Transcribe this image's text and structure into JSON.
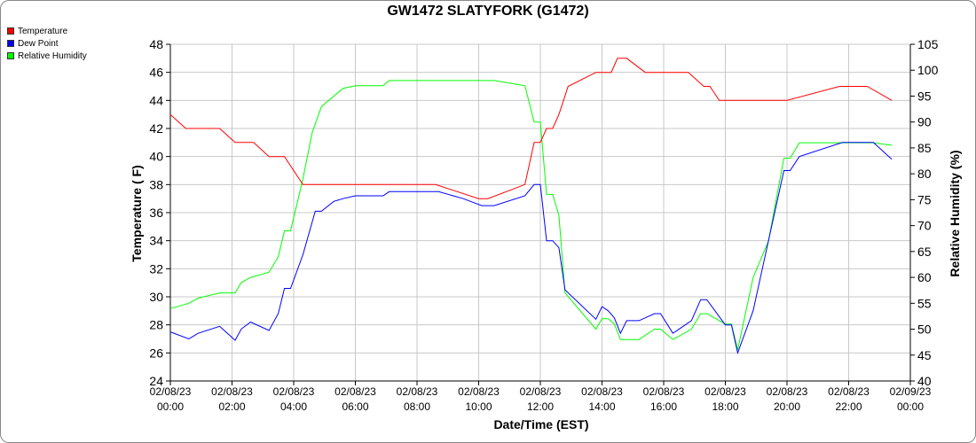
{
  "colors": {
    "temperature": "#ff0000",
    "dew_point": "#0000ff",
    "humidity": "#00ff00",
    "grid": "#c8c8c8"
  },
  "chart_data": {
    "type": "line",
    "title": "GW1472 SLATYFORK (G1472)",
    "xlabel": "Date/Time (EST)",
    "ylabel_left": "Temperature ( F)",
    "ylabel_right": "Relative Humidity (%)",
    "ylim_left": [
      24,
      48
    ],
    "ylim_right": [
      40,
      105
    ],
    "xlim_hours": [
      0,
      24
    ],
    "x_ticks": [
      {
        "h": 0,
        "date": "02/08/23",
        "time": "00:00"
      },
      {
        "h": 2,
        "date": "02/08/23",
        "time": "02:00"
      },
      {
        "h": 4,
        "date": "02/08/23",
        "time": "04:00"
      },
      {
        "h": 6,
        "date": "02/08/23",
        "time": "06:00"
      },
      {
        "h": 8,
        "date": "02/08/23",
        "time": "08:00"
      },
      {
        "h": 10,
        "date": "02/08/23",
        "time": "10:00"
      },
      {
        "h": 12,
        "date": "02/08/23",
        "time": "12:00"
      },
      {
        "h": 14,
        "date": "02/08/23",
        "time": "14:00"
      },
      {
        "h": 16,
        "date": "02/08/23",
        "time": "16:00"
      },
      {
        "h": 18,
        "date": "02/08/23",
        "time": "18:00"
      },
      {
        "h": 20,
        "date": "02/08/23",
        "time": "20:00"
      },
      {
        "h": 22,
        "date": "02/08/23",
        "time": "22:00"
      },
      {
        "h": 24,
        "date": "02/09/23",
        "time": "00:00"
      }
    ],
    "y_ticks_left": [
      24,
      26,
      28,
      30,
      32,
      34,
      36,
      38,
      40,
      42,
      44,
      46,
      48
    ],
    "y_ticks_right": [
      40,
      45,
      50,
      55,
      60,
      65,
      70,
      75,
      80,
      85,
      90,
      95,
      100,
      105
    ],
    "grid": true,
    "legend_position": "top-left",
    "series": [
      {
        "name": "Temperature",
        "axis": "left",
        "color_key": "temperature",
        "points": [
          [
            0,
            43
          ],
          [
            0.5,
            42
          ],
          [
            1.6,
            42
          ],
          [
            2.1,
            41
          ],
          [
            2.7,
            41
          ],
          [
            3.2,
            40
          ],
          [
            3.7,
            40
          ],
          [
            4.3,
            38
          ],
          [
            8.6,
            38
          ],
          [
            10,
            37
          ],
          [
            10.3,
            37
          ],
          [
            11.5,
            38
          ],
          [
            11.8,
            41
          ],
          [
            12,
            41
          ],
          [
            12.2,
            42
          ],
          [
            12.4,
            42
          ],
          [
            12.6,
            43
          ],
          [
            12.9,
            45
          ],
          [
            13.8,
            46
          ],
          [
            14.3,
            46
          ],
          [
            14.5,
            47
          ],
          [
            14.8,
            47
          ],
          [
            15.4,
            46
          ],
          [
            16.8,
            46
          ],
          [
            17.3,
            45
          ],
          [
            17.5,
            45
          ],
          [
            17.8,
            44
          ],
          [
            20,
            44
          ],
          [
            21.7,
            45
          ],
          [
            22.6,
            45
          ],
          [
            23.4,
            44
          ]
        ]
      },
      {
        "name": "Dew Point",
        "axis": "left",
        "color_key": "dew_point",
        "points": [
          [
            0,
            27.5
          ],
          [
            0.6,
            27
          ],
          [
            0.9,
            27.4
          ],
          [
            1.6,
            27.9
          ],
          [
            2.1,
            26.9
          ],
          [
            2.3,
            27.7
          ],
          [
            2.6,
            28.2
          ],
          [
            3.2,
            27.6
          ],
          [
            3.5,
            28.8
          ],
          [
            3.7,
            30.6
          ],
          [
            3.9,
            30.6
          ],
          [
            4.3,
            33
          ],
          [
            4.7,
            36.1
          ],
          [
            4.9,
            36.1
          ],
          [
            5.3,
            36.8
          ],
          [
            5.6,
            37
          ],
          [
            6,
            37.2
          ],
          [
            6.9,
            37.2
          ],
          [
            7.1,
            37.5
          ],
          [
            8.7,
            37.5
          ],
          [
            9.5,
            37
          ],
          [
            10.1,
            36.5
          ],
          [
            10.5,
            36.5
          ],
          [
            11.5,
            37.2
          ],
          [
            11.8,
            38
          ],
          [
            12,
            38
          ],
          [
            12.2,
            34
          ],
          [
            12.4,
            34
          ],
          [
            12.6,
            33.5
          ],
          [
            12.8,
            30.5
          ],
          [
            13.8,
            28.4
          ],
          [
            14,
            29.3
          ],
          [
            14.2,
            29
          ],
          [
            14.4,
            28.5
          ],
          [
            14.6,
            27.4
          ],
          [
            14.8,
            28.3
          ],
          [
            15.2,
            28.3
          ],
          [
            15.7,
            28.8
          ],
          [
            15.9,
            28.8
          ],
          [
            16.3,
            27.4
          ],
          [
            16.9,
            28.3
          ],
          [
            17.2,
            29.8
          ],
          [
            17.4,
            29.8
          ],
          [
            18,
            28
          ],
          [
            18.2,
            28
          ],
          [
            18.4,
            26
          ],
          [
            18.9,
            29
          ],
          [
            19.4,
            34
          ],
          [
            19.9,
            39
          ],
          [
            20.1,
            39
          ],
          [
            20.4,
            40
          ],
          [
            21.8,
            41
          ],
          [
            22.8,
            41
          ],
          [
            23.4,
            39.8
          ]
        ]
      },
      {
        "name": "Relative Humidity",
        "axis": "right",
        "color_key": "humidity",
        "points": [
          [
            0,
            54
          ],
          [
            0.6,
            55
          ],
          [
            0.9,
            56
          ],
          [
            1.6,
            57
          ],
          [
            2.1,
            57
          ],
          [
            2.3,
            59
          ],
          [
            2.6,
            60
          ],
          [
            3.2,
            61
          ],
          [
            3.5,
            64
          ],
          [
            3.7,
            69
          ],
          [
            3.9,
            69
          ],
          [
            4.3,
            79
          ],
          [
            4.6,
            88
          ],
          [
            4.9,
            93
          ],
          [
            5.3,
            95
          ],
          [
            5.6,
            96.5
          ],
          [
            6,
            97
          ],
          [
            6.9,
            97
          ],
          [
            7.1,
            98
          ],
          [
            8.7,
            98
          ],
          [
            9.5,
            98
          ],
          [
            10.1,
            98
          ],
          [
            10.5,
            98
          ],
          [
            11.5,
            97
          ],
          [
            11.8,
            90
          ],
          [
            12,
            90
          ],
          [
            12.2,
            76
          ],
          [
            12.4,
            76
          ],
          [
            12.6,
            72
          ],
          [
            12.8,
            57
          ],
          [
            13.8,
            50
          ],
          [
            14,
            52
          ],
          [
            14.2,
            52
          ],
          [
            14.4,
            51
          ],
          [
            14.6,
            48
          ],
          [
            14.8,
            48
          ],
          [
            15.2,
            48
          ],
          [
            15.7,
            50
          ],
          [
            15.9,
            50
          ],
          [
            16.3,
            48
          ],
          [
            16.9,
            50
          ],
          [
            17.2,
            53
          ],
          [
            17.4,
            53
          ],
          [
            18,
            51
          ],
          [
            18.2,
            51
          ],
          [
            18.4,
            46
          ],
          [
            18.9,
            60
          ],
          [
            19.4,
            67
          ],
          [
            19.9,
            83
          ],
          [
            20.1,
            83
          ],
          [
            20.4,
            86
          ],
          [
            21.8,
            86
          ],
          [
            22.8,
            86
          ],
          [
            23.4,
            85.5
          ]
        ]
      }
    ]
  }
}
